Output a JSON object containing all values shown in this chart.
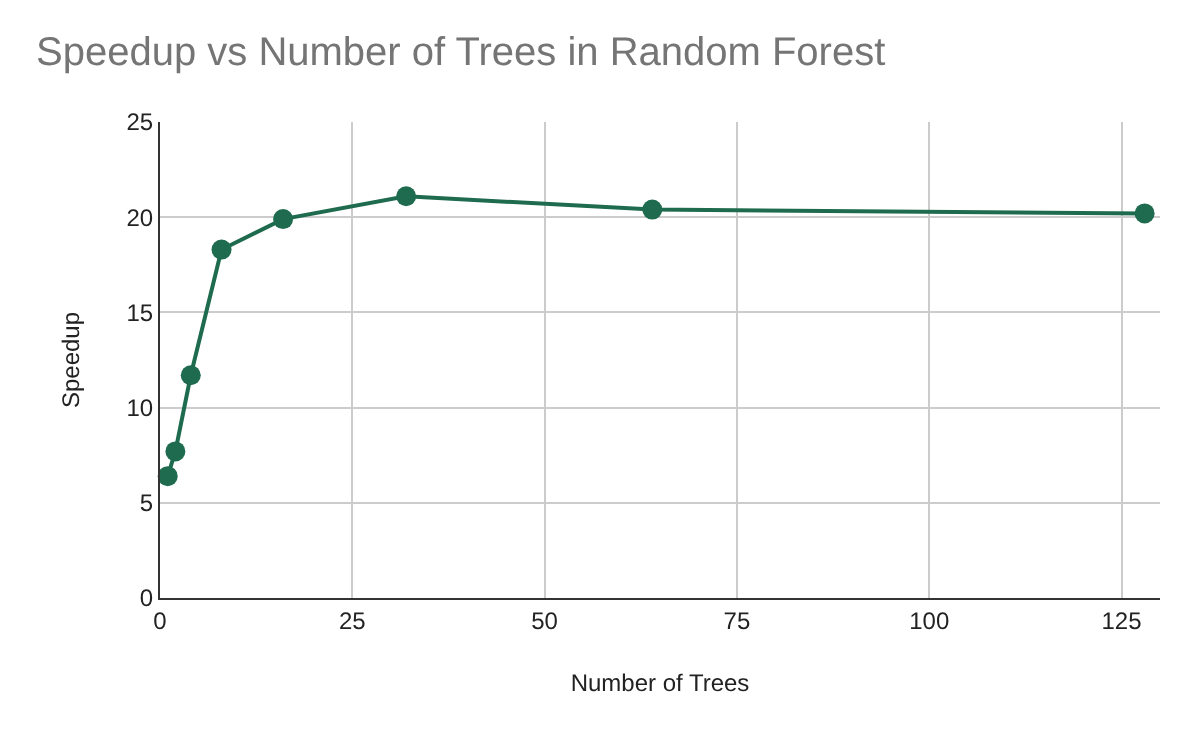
{
  "chart_data": {
    "type": "line",
    "title": "Speedup vs Number of Trees in Random Forest",
    "xlabel": "Number of Trees",
    "ylabel": "Speedup",
    "x": [
      1,
      2,
      4,
      8,
      16,
      32,
      64,
      128
    ],
    "series": [
      {
        "color": "#1e6b4f",
        "values": [
          6.4,
          7.7,
          11.7,
          18.3,
          19.9,
          21.1,
          20.4,
          20.2
        ]
      }
    ],
    "xlim": [
      0,
      130
    ],
    "xticks": [
      0,
      25,
      50,
      75,
      100,
      125
    ],
    "ylim": [
      0,
      25
    ],
    "yticks": [
      0,
      5,
      10,
      15,
      20,
      25
    ],
    "grid": true,
    "marker": "circle",
    "line_style": "solid"
  }
}
